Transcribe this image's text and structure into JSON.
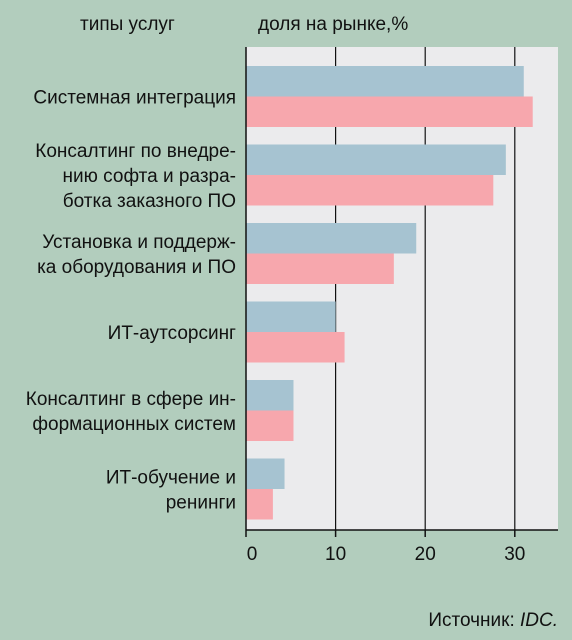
{
  "header": {
    "category_header": "типы услуг",
    "value_header": "доля на рынке,%"
  },
  "source": {
    "label": "Источник:",
    "name": "IDC."
  },
  "chart_data": {
    "type": "bar",
    "orientation": "horizontal",
    "categories": [
      [
        "Системная интеграция"
      ],
      [
        "Консалтинг по внедре-",
        "нию софта и разра-",
        "ботка заказного ПО"
      ],
      [
        "Установка и поддерж-",
        "ка оборудования и ПО"
      ],
      [
        "ИТ-аутсорсинг"
      ],
      [
        "Консалтинг в сфере ин-",
        "формационных систем"
      ],
      [
        "ИТ-обучение и",
        "ренинги"
      ]
    ],
    "series": [
      {
        "color": "#a6c3d1",
        "values": [
          31,
          29,
          19,
          10,
          5.3,
          4.3
        ]
      },
      {
        "color": "#f7a7ad",
        "values": [
          32,
          27.6,
          16.5,
          11,
          5.3,
          3
        ]
      }
    ],
    "xlim": [
      0,
      34
    ],
    "xticks": [
      0,
      10,
      20,
      30
    ],
    "grid": true,
    "plot_background": "#ebebed",
    "grid_color": "#111111"
  }
}
